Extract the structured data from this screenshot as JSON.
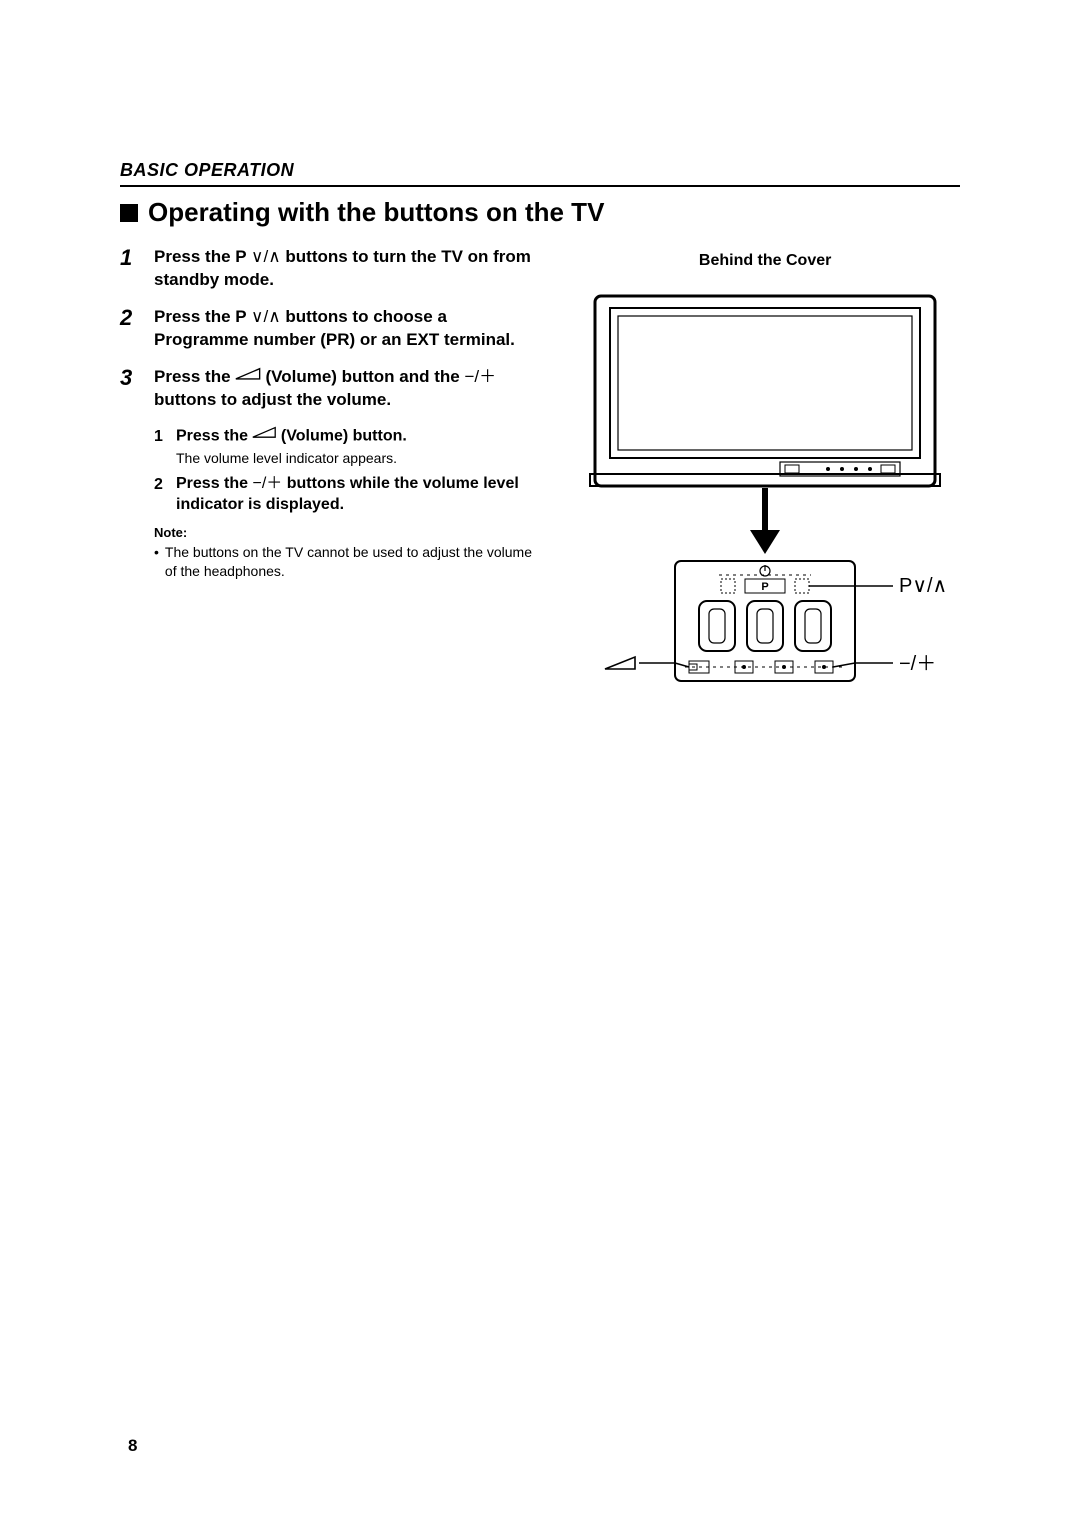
{
  "section_header": "BASIC OPERATION",
  "title": "Operating with the buttons on the TV",
  "glyphs": {
    "down": "∨",
    "up": "∧",
    "minus": "−",
    "plus": "＋"
  },
  "steps": [
    {
      "num": "1",
      "text_parts": [
        "Press the P ",
        "∨",
        "/",
        "∧",
        " buttons to turn the TV on from standby mode."
      ]
    },
    {
      "num": "2",
      "text_parts": [
        "Press the P ",
        "∨",
        "/",
        "∧",
        " buttons to choose a Programme number (PR) or an EXT terminal."
      ]
    },
    {
      "num": "3",
      "text_parts": [
        "Press the ",
        "VOLICON",
        " (Volume) button and the ",
        "−",
        "/",
        "＋",
        " buttons to adjust the volume."
      ],
      "substeps": [
        {
          "num": "1",
          "text_parts": [
            "Press the ",
            "VOLICON",
            " (Volume) button."
          ],
          "desc": "The volume level indicator appears."
        },
        {
          "num": "2",
          "text_parts": [
            "Press the ",
            "−",
            "/",
            "＋",
            " buttons while the volume level indicator is displayed."
          ]
        }
      ],
      "note_label": "Note:",
      "note_text": "The buttons on the TV cannot be used to adjust the volume of the headphones."
    }
  ],
  "right": {
    "behind_label": "Behind the Cover",
    "callout_p": "P∨/∧",
    "callout_pm": "−/＋"
  },
  "page_number": "8",
  "figure": {
    "tv_outer_stroke": "#000000",
    "tv_fill": "#ffffff",
    "screen_inner_fill": "#ffffff",
    "line_width": 2,
    "thin_line_width": 1.2
  }
}
